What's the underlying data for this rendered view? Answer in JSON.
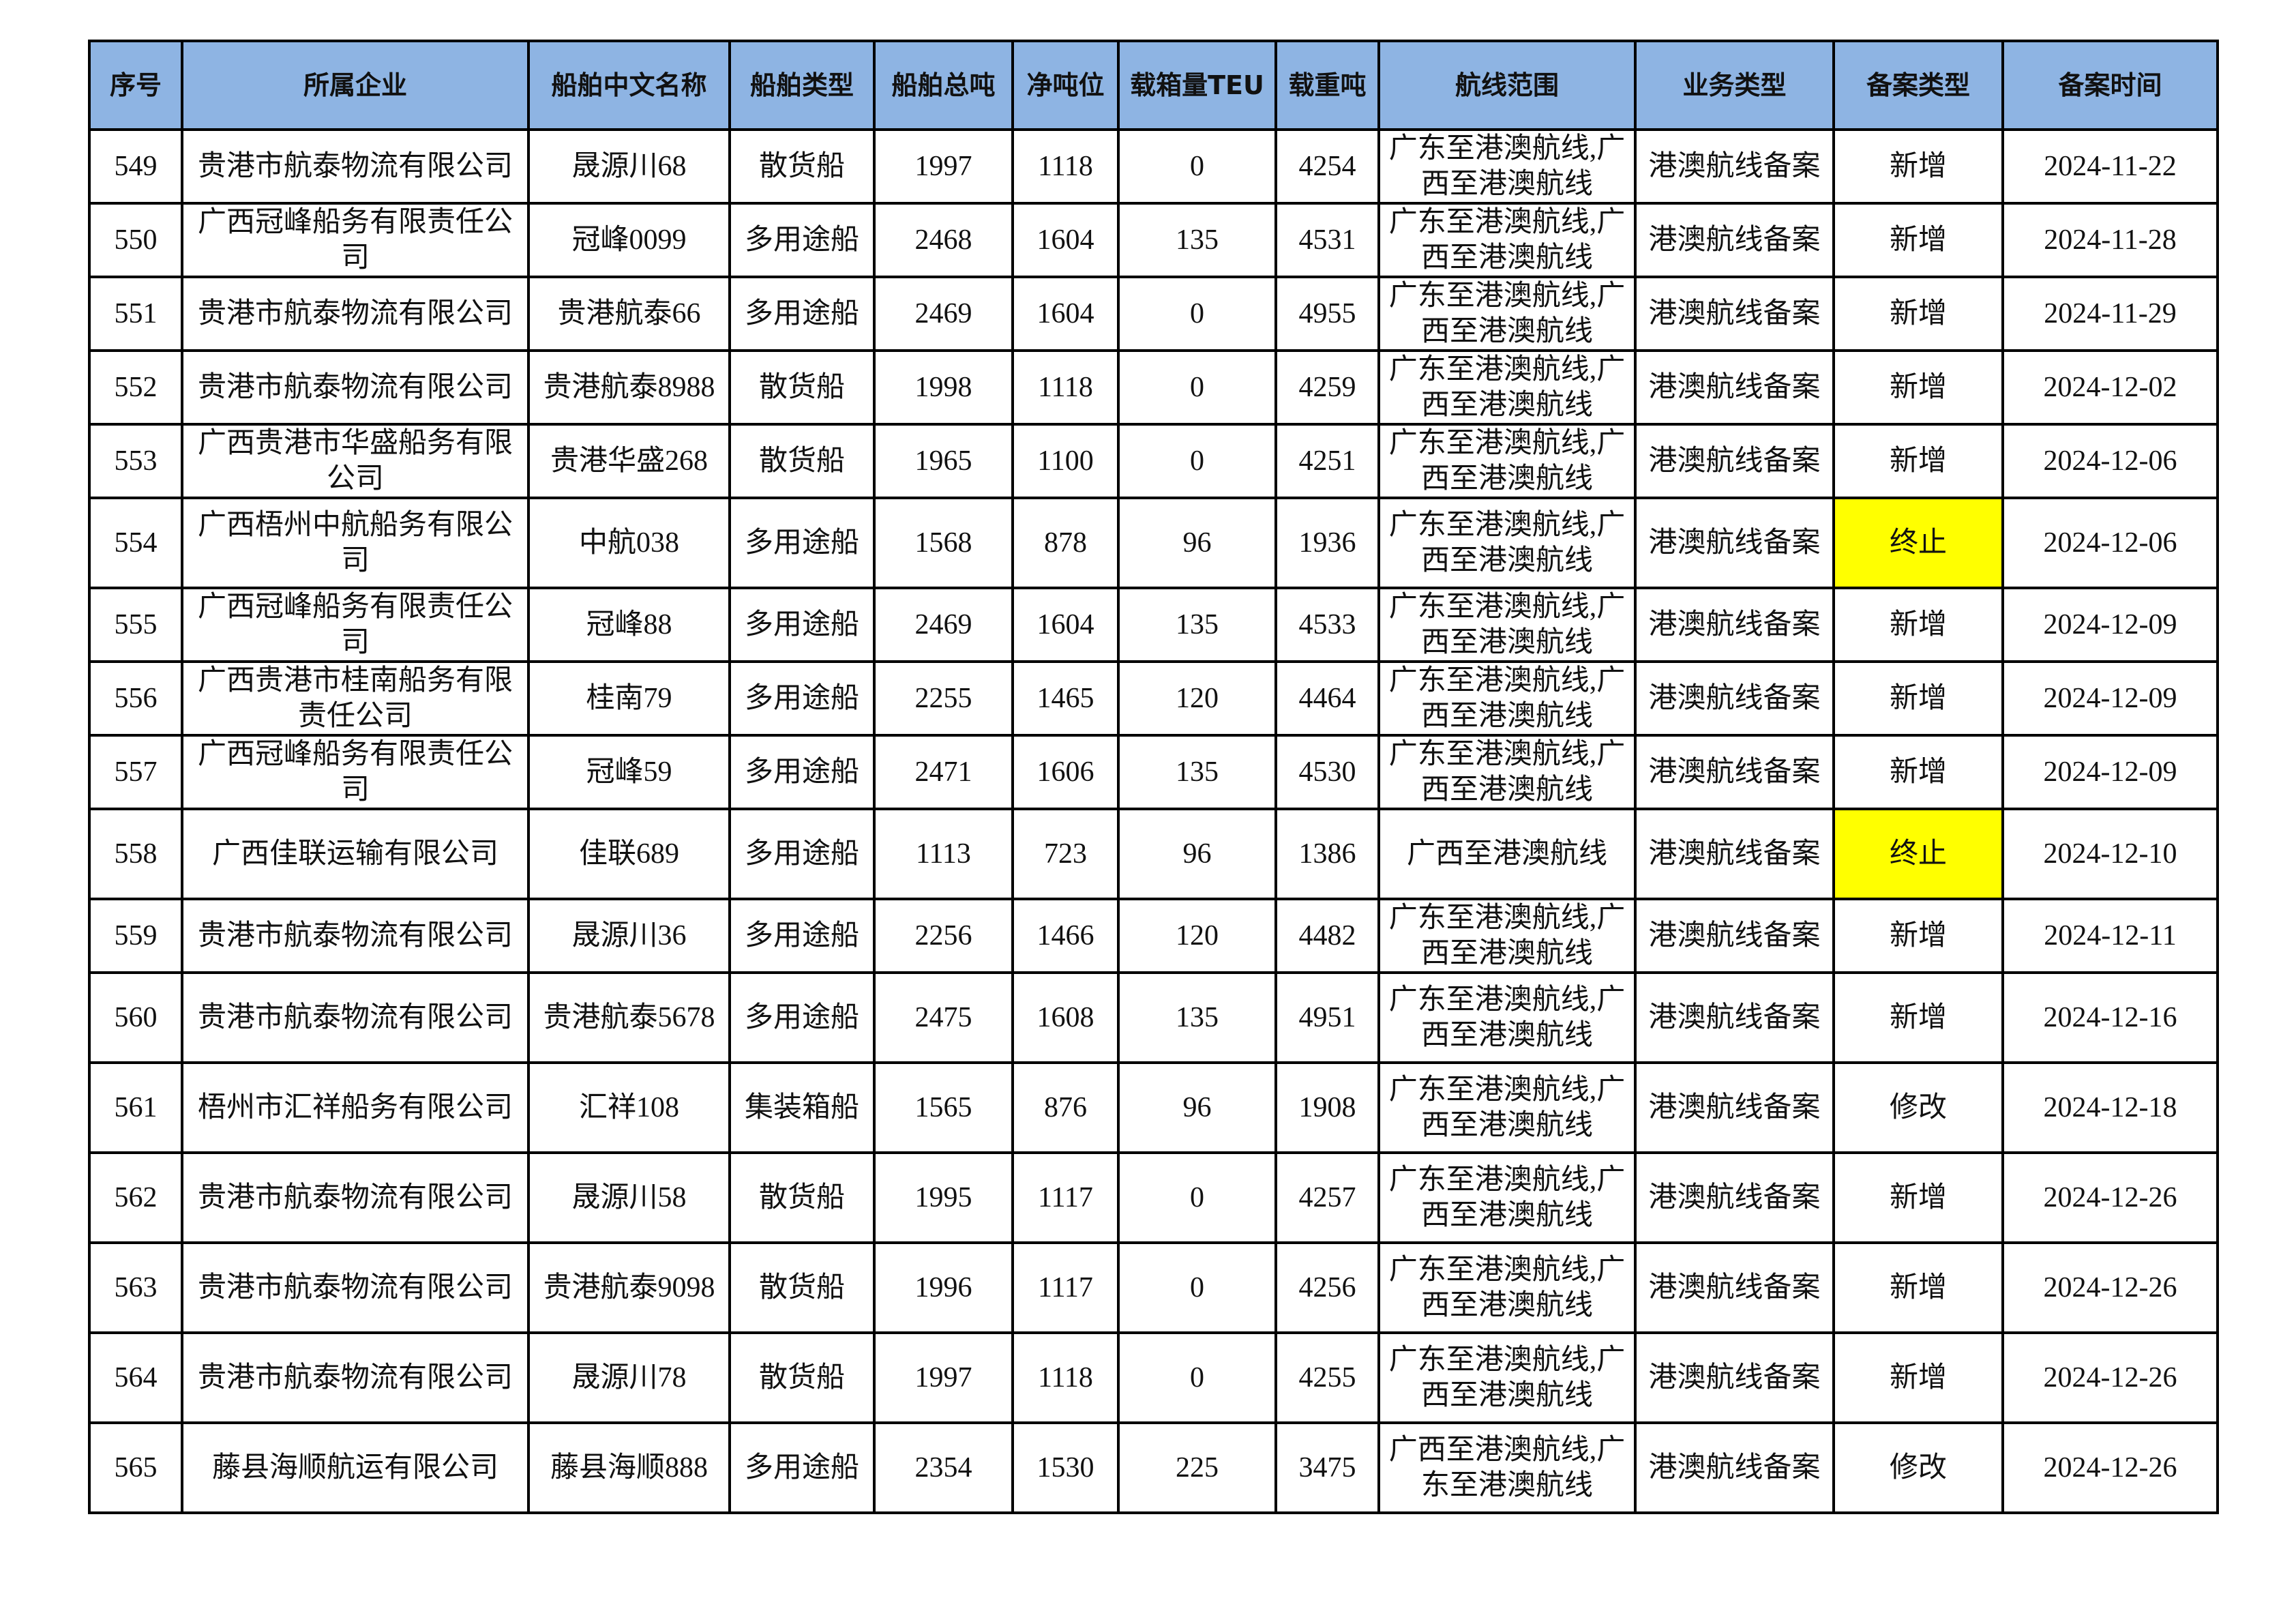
{
  "headers": [
    "序号",
    "所属企业",
    "船舶中文名称",
    "船舶类型",
    "船舶总吨",
    "净吨位",
    "载箱量TEU",
    "载重吨",
    "航线范围",
    "业务类型",
    "备案类型",
    "备案时间"
  ],
  "highlight_color": "#FFFF00",
  "header_color": "#8EB4E3",
  "rows": [
    [
      "549",
      "贵港市航泰物流有限公司",
      "晟源川68",
      "散货船",
      "1997",
      "1118",
      "0",
      "4254",
      "广东至港澳航线,广西至港澳航线",
      "港澳航线备案",
      "新增",
      "2024-11-22"
    ],
    [
      "550",
      "广西冠峰船务有限责任公司",
      "冠峰0099",
      "多用途船",
      "2468",
      "1604",
      "135",
      "4531",
      "广东至港澳航线,广西至港澳航线",
      "港澳航线备案",
      "新增",
      "2024-11-28"
    ],
    [
      "551",
      "贵港市航泰物流有限公司",
      "贵港航泰66",
      "多用途船",
      "2469",
      "1604",
      "0",
      "4955",
      "广东至港澳航线,广西至港澳航线",
      "港澳航线备案",
      "新增",
      "2024-11-29"
    ],
    [
      "552",
      "贵港市航泰物流有限公司",
      "贵港航泰8988",
      "散货船",
      "1998",
      "1118",
      "0",
      "4259",
      "广东至港澳航线,广西至港澳航线",
      "港澳航线备案",
      "新增",
      "2024-12-02"
    ],
    [
      "553",
      "广西贵港市华盛船务有限公司",
      "贵港华盛268",
      "散货船",
      "1965",
      "1100",
      "0",
      "4251",
      "广东至港澳航线,广西至港澳航线",
      "港澳航线备案",
      "新增",
      "2024-12-06"
    ],
    [
      "554",
      "广西梧州中航船务有限公司",
      "中航038",
      "多用途船",
      "1568",
      "878",
      "96",
      "1936",
      "广东至港澳航线,广西至港澳航线",
      "港澳航线备案",
      "终止",
      "2024-12-06"
    ],
    [
      "555",
      "广西冠峰船务有限责任公司",
      "冠峰88",
      "多用途船",
      "2469",
      "1604",
      "135",
      "4533",
      "广东至港澳航线,广西至港澳航线",
      "港澳航线备案",
      "新增",
      "2024-12-09"
    ],
    [
      "556",
      "广西贵港市桂南船务有限责任公司",
      "桂南79",
      "多用途船",
      "2255",
      "1465",
      "120",
      "4464",
      "广东至港澳航线,广西至港澳航线",
      "港澳航线备案",
      "新增",
      "2024-12-09"
    ],
    [
      "557",
      "广西冠峰船务有限责任公司",
      "冠峰59",
      "多用途船",
      "2471",
      "1606",
      "135",
      "4530",
      "广东至港澳航线,广西至港澳航线",
      "港澳航线备案",
      "新增",
      "2024-12-09"
    ],
    [
      "558",
      "广西佳联运输有限公司",
      "佳联689",
      "多用途船",
      "1113",
      "723",
      "96",
      "1386",
      "广西至港澳航线",
      "港澳航线备案",
      "终止",
      "2024-12-10"
    ],
    [
      "559",
      "贵港市航泰物流有限公司",
      "晟源川36",
      "多用途船",
      "2256",
      "1466",
      "120",
      "4482",
      "广东至港澳航线,广西至港澳航线",
      "港澳航线备案",
      "新增",
      "2024-12-11"
    ],
    [
      "560",
      "贵港市航泰物流有限公司",
      "贵港航泰5678",
      "多用途船",
      "2475",
      "1608",
      "135",
      "4951",
      "广东至港澳航线,广西至港澳航线",
      "港澳航线备案",
      "新增",
      "2024-12-16"
    ],
    [
      "561",
      "梧州市汇祥船务有限公司",
      "汇祥108",
      "集装箱船",
      "1565",
      "876",
      "96",
      "1908",
      "广东至港澳航线,广西至港澳航线",
      "港澳航线备案",
      "修改",
      "2024-12-18"
    ],
    [
      "562",
      "贵港市航泰物流有限公司",
      "晟源川58",
      "散货船",
      "1995",
      "1117",
      "0",
      "4257",
      "广东至港澳航线,广西至港澳航线",
      "港澳航线备案",
      "新增",
      "2024-12-26"
    ],
    [
      "563",
      "贵港市航泰物流有限公司",
      "贵港航泰9098",
      "散货船",
      "1996",
      "1117",
      "0",
      "4256",
      "广东至港澳航线,广西至港澳航线",
      "港澳航线备案",
      "新增",
      "2024-12-26"
    ],
    [
      "564",
      "贵港市航泰物流有限公司",
      "晟源川78",
      "散货船",
      "1997",
      "1118",
      "0",
      "4255",
      "广东至港澳航线,广西至港澳航线",
      "港澳航线备案",
      "新增",
      "2024-12-26"
    ],
    [
      "565",
      "藤县海顺航运有限公司",
      "藤县海顺888",
      "多用途船",
      "2354",
      "1530",
      "225",
      "3475",
      "广西至港澳航线,广东至港澳航线",
      "港澳航线备案",
      "修改",
      "2024-12-26"
    ]
  ]
}
